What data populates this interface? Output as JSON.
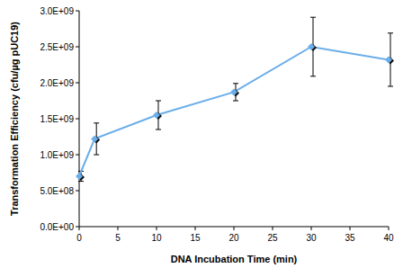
{
  "chart_data": {
    "type": "line",
    "x_label": "DNA Incubation Time (min)",
    "y_label": "Transformation Efficiency (cfu/µg pUC19)",
    "x": [
      0,
      2,
      10,
      20,
      30,
      40
    ],
    "values": [
      700000000,
      1220000000,
      1550000000,
      1870000000,
      2500000000,
      2320000000
    ],
    "errors": [
      70000000,
      220000000,
      200000000,
      120000000,
      410000000,
      370000000
    ],
    "color": "#6aaee8",
    "marker": "diamond",
    "xlim": [
      0,
      40
    ],
    "xticks": [
      0,
      5,
      10,
      15,
      20,
      25,
      30,
      35,
      40
    ],
    "ylim": [
      0,
      3000000000
    ],
    "yticks": [
      {
        "value": 0,
        "label": "0.0E+00"
      },
      {
        "value": 500000000,
        "label": "5.0E+08"
      },
      {
        "value": 1000000000,
        "label": "1.0E+09"
      },
      {
        "value": 1500000000,
        "label": "1.5E+09"
      },
      {
        "value": 2000000000,
        "label": "2.0E+09"
      },
      {
        "value": 2500000000,
        "label": "2.5E+09"
      },
      {
        "value": 3000000000,
        "label": "3.0E+09"
      }
    ],
    "grid": false
  }
}
